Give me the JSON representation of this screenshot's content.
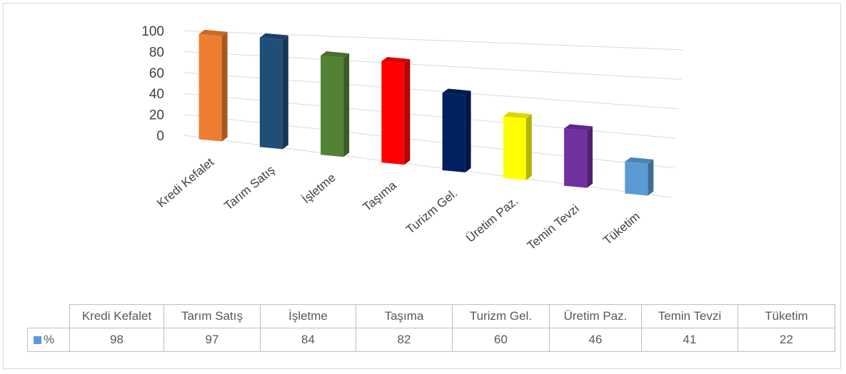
{
  "chart_data": {
    "type": "bar",
    "title": "",
    "xlabel": "",
    "ylabel": "",
    "ylim": [
      0,
      100
    ],
    "yticks": [
      0,
      20,
      40,
      60,
      80,
      100
    ],
    "categories": [
      "Kredi Kefalet",
      "Tarım Satış",
      "İşletme",
      "Taşıma",
      "Turizm Gel.",
      "Üretim Paz.",
      "Temin Tevzi",
      "Tüketim"
    ],
    "series": [
      {
        "name": "%",
        "values": [
          98,
          97,
          84,
          82,
          60,
          46,
          41,
          22
        ]
      }
    ],
    "bar_colors": [
      "#ed7d31",
      "#1f4e79",
      "#548235",
      "#ff0000",
      "#002060",
      "#ffff00",
      "#7030a0",
      "#5b9bd5"
    ],
    "legend_key_color": "#5b9bd5",
    "grid": true,
    "perspective": "3d",
    "data_table": true
  }
}
